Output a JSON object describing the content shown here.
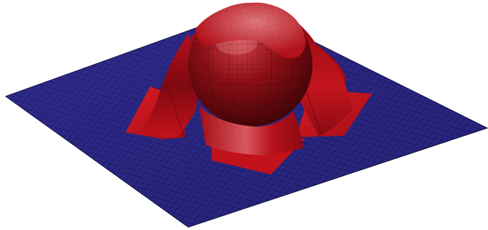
{
  "scene": {
    "objects": [
      {
        "name": "ground-plane",
        "kind": "tiled plane",
        "color": "#2d2a8c",
        "mesh_color": "#0e0c3a"
      },
      {
        "name": "sphere",
        "kind": "sphere",
        "color": "#a3141c",
        "mesh_color": "#3a0608"
      },
      {
        "name": "cloth",
        "kind": "draped cloth",
        "color": "#c8121c",
        "mesh_color": "#5a0a0e"
      }
    ],
    "background_color": "#ffffff"
  }
}
